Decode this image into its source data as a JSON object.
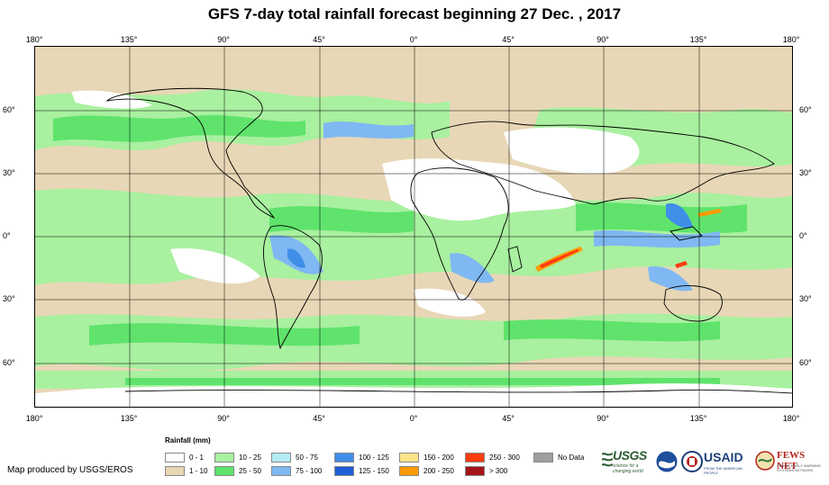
{
  "title": "GFS 7-day total rainfall forecast beginning 27 Dec. , 2017",
  "longitude_ticks": [
    "180°",
    "135°",
    "90°",
    "45°",
    "0°",
    "45°",
    "90°",
    "135°",
    "180°"
  ],
  "latitude_ticks": [
    "60°",
    "30°",
    "0°",
    "30°",
    "60°"
  ],
  "legend": {
    "title": "Rainfall (mm)",
    "items": [
      {
        "label": "0 - 1",
        "color": "#ffffff"
      },
      {
        "label": "1 - 10",
        "color": "#e8d7b6"
      },
      {
        "label": "10 - 25",
        "color": "#a9f0a0"
      },
      {
        "label": "25 - 50",
        "color": "#5fe36c"
      },
      {
        "label": "50 - 75",
        "color": "#b4ecf5"
      },
      {
        "label": "75 - 100",
        "color": "#7fb8f2"
      },
      {
        "label": "100 - 125",
        "color": "#3f8ee8"
      },
      {
        "label": "125 - 150",
        "color": "#1f5fd6"
      },
      {
        "label": "150 - 200",
        "color": "#fde38a"
      },
      {
        "label": "200 - 250",
        "color": "#ff9a00"
      },
      {
        "label": "250 - 300",
        "color": "#ff3b10"
      },
      {
        "label": "> 300",
        "color": "#a5141a"
      },
      {
        "label": "No Data",
        "color": "#9e9e9e"
      }
    ]
  },
  "credit": "Map produced by USGS/EROS",
  "logos": {
    "usgs": "USGS",
    "usgs_tagline": "science for a changing world",
    "usaid": "USAID",
    "usaid_tagline": "FROM THE AMERICAN PEOPLE",
    "fews": "FEWS NET",
    "fews_tagline": "FAMINE EARLY WARNING SYSTEMS NETWORK",
    "noaa": "noaa-logo",
    "dhs": "dhs-seal"
  }
}
